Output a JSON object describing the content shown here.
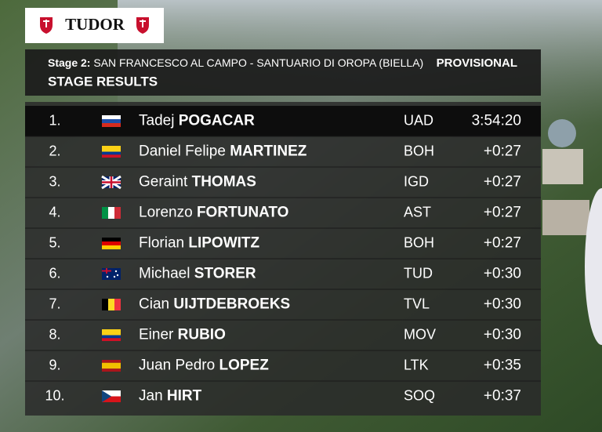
{
  "brand": "TUDOR",
  "header": {
    "stage_label": "Stage 2:",
    "route": "SAN FRANCESCO AL CAMPO - SANTUARIO DI OROPA (BIELLA)",
    "status": "PROVISIONAL",
    "title": "STAGE RESULTS"
  },
  "rows": [
    {
      "rank": "1.",
      "first_name": "Tadej",
      "last_name": "POGACAR",
      "team": "UAD",
      "time": "3:54:20"
    },
    {
      "rank": "2.",
      "first_name": "Daniel Felipe",
      "last_name": "MARTINEZ",
      "team": "BOH",
      "time": "+0:27"
    },
    {
      "rank": "3.",
      "first_name": "Geraint",
      "last_name": "THOMAS",
      "team": "IGD",
      "time": "+0:27"
    },
    {
      "rank": "4.",
      "first_name": "Lorenzo",
      "last_name": "FORTUNATO",
      "team": "AST",
      "time": "+0:27"
    },
    {
      "rank": "5.",
      "first_name": "Florian",
      "last_name": "LIPOWITZ",
      "team": "BOH",
      "time": "+0:27"
    },
    {
      "rank": "6.",
      "first_name": "Michael",
      "last_name": "STORER",
      "team": "TUD",
      "time": "+0:30"
    },
    {
      "rank": "7.",
      "first_name": "Cian",
      "last_name": "UIJTDEBROEKS",
      "team": "TVL",
      "time": "+0:30"
    },
    {
      "rank": "8.",
      "first_name": "Einer",
      "last_name": "RUBIO",
      "team": "MOV",
      "time": "+0:30"
    },
    {
      "rank": "9.",
      "first_name": "Juan Pedro",
      "last_name": "LOPEZ",
      "team": "LTK",
      "time": "+0:35"
    },
    {
      "rank": "10.",
      "first_name": "Jan",
      "last_name": "HIRT",
      "team": "SOQ",
      "time": "+0:37"
    }
  ]
}
